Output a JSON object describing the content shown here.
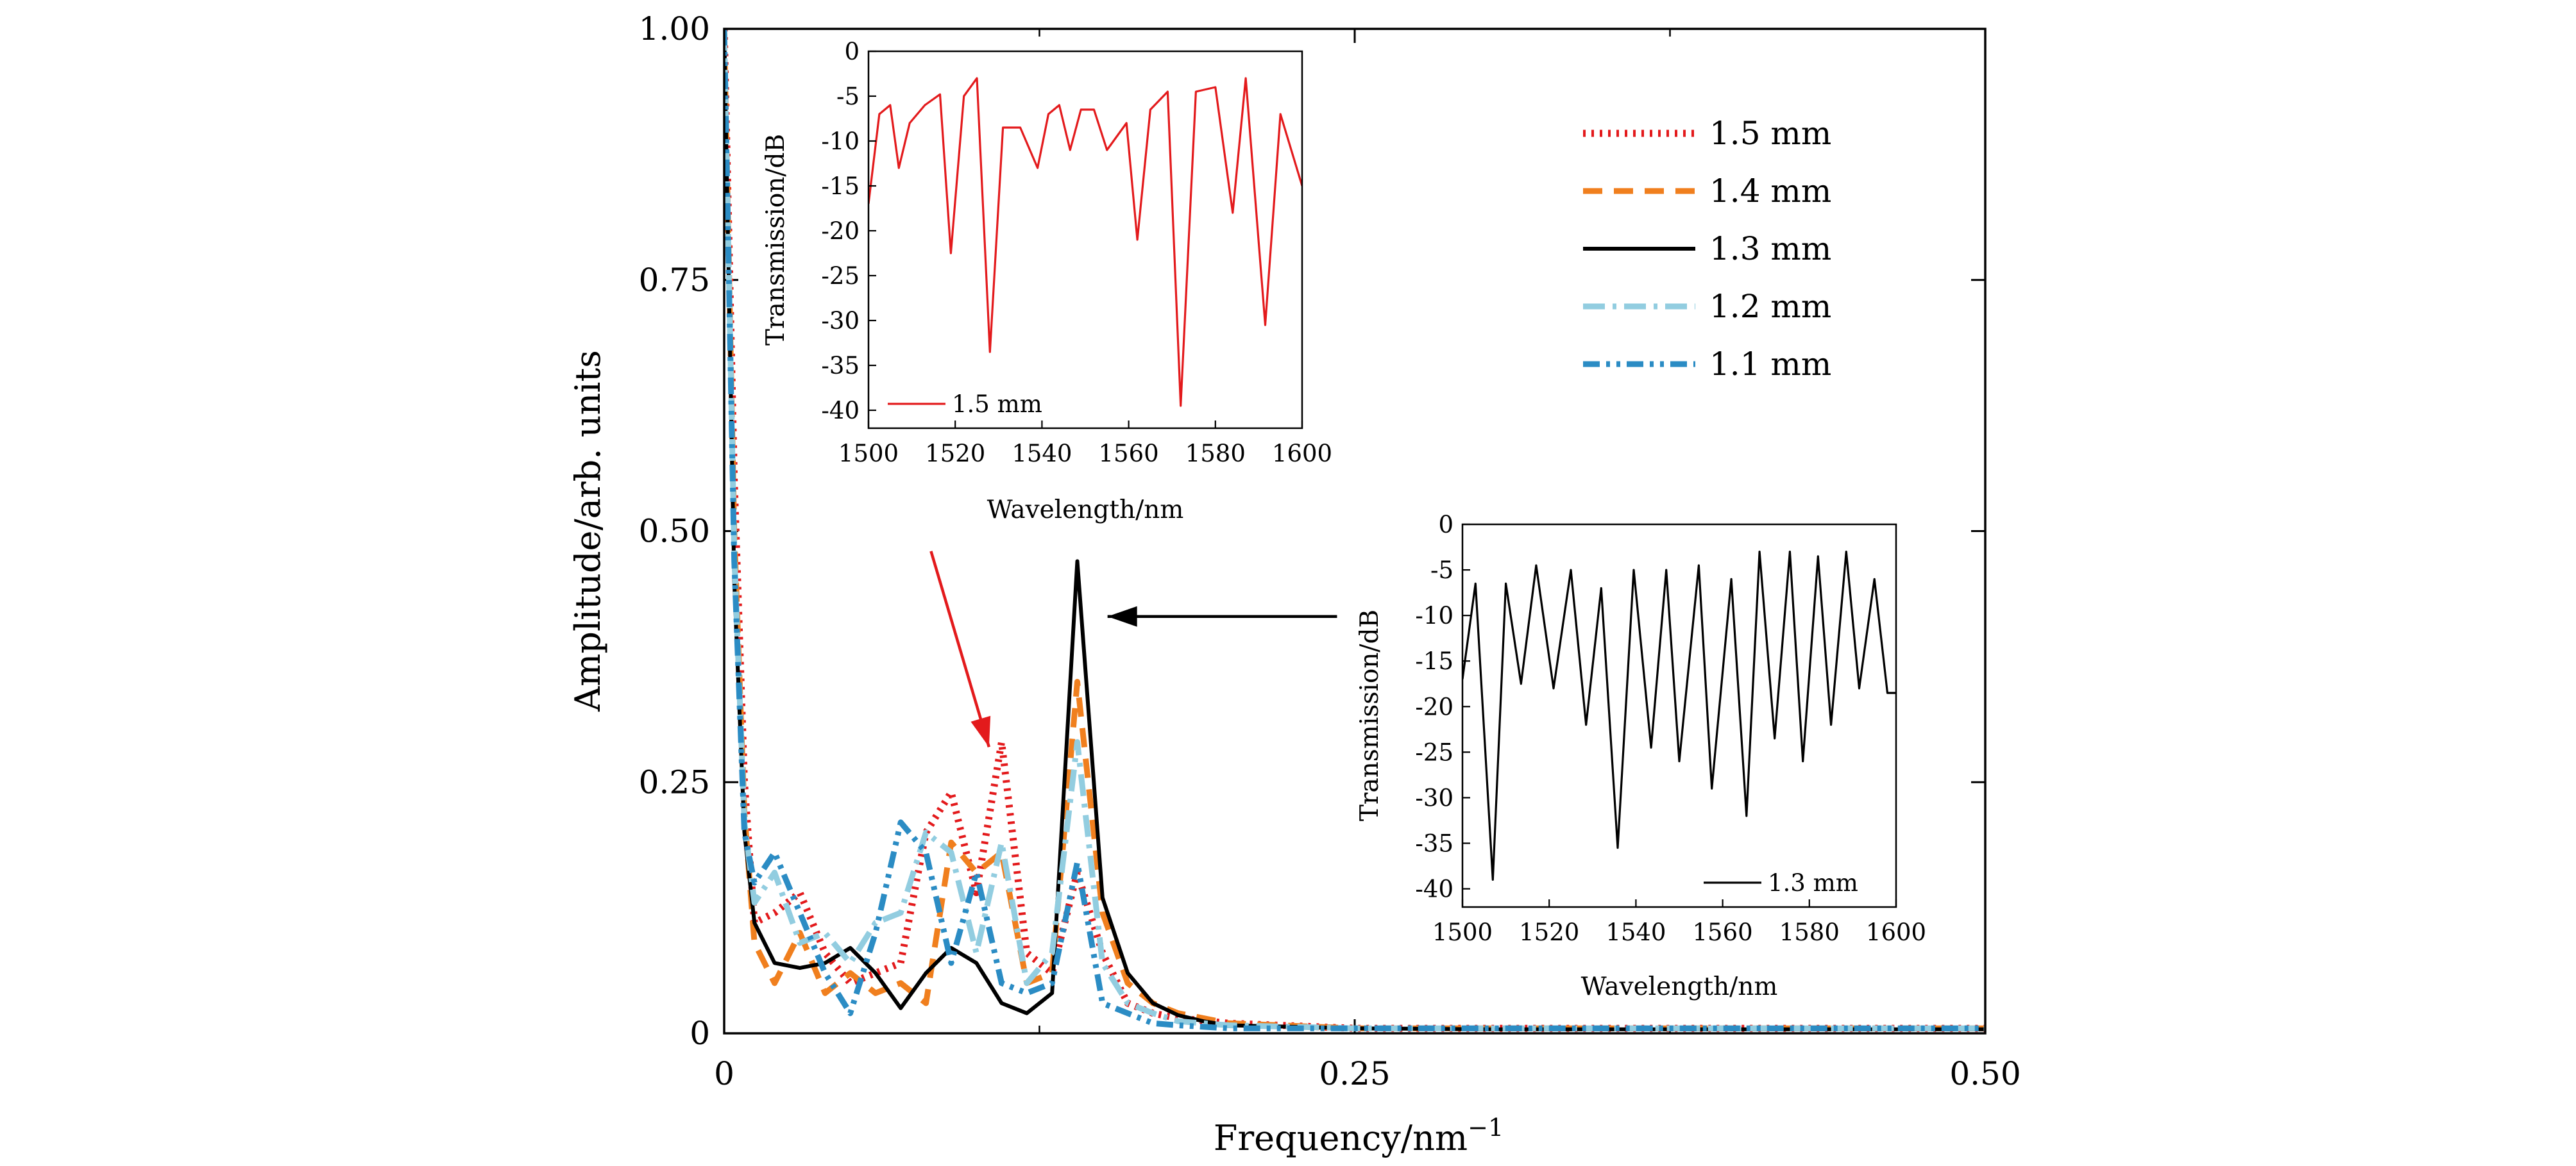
{
  "chart_data": [
    {
      "id": "main",
      "type": "line",
      "title": "",
      "xlabel": "Frequency/nm",
      "xlabel_sup": "−1",
      "ylabel": "Amplitude/arb. units",
      "xlim": [
        0,
        0.5
      ],
      "ylim": [
        0,
        1
      ],
      "xticks": [
        0,
        0.25,
        0.5
      ],
      "xtick_labels": [
        "0",
        "0.25",
        "0.50"
      ],
      "yticks": [
        0,
        0.25,
        0.5,
        0.75,
        1
      ],
      "ytick_labels": [
        "0",
        "0.25",
        "0.50",
        "0.75",
        "1.00"
      ],
      "legend_position": "top-right",
      "series": [
        {
          "name": "1.5 mm",
          "color": "#e31a1c",
          "style": "dotted",
          "x": [
            0,
            0.004,
            0.008,
            0.012,
            0.02,
            0.03,
            0.04,
            0.05,
            0.06,
            0.07,
            0.08,
            0.09,
            0.1,
            0.11,
            0.12,
            0.13,
            0.14,
            0.15,
            0.16,
            0.17,
            0.18,
            0.2,
            0.25,
            0.3,
            0.35,
            0.4,
            0.45,
            0.5
          ],
          "values": [
            1.0,
            0.55,
            0.25,
            0.11,
            0.12,
            0.14,
            0.08,
            0.05,
            0.06,
            0.07,
            0.2,
            0.24,
            0.14,
            0.29,
            0.08,
            0.06,
            0.16,
            0.08,
            0.03,
            0.02,
            0.015,
            0.01,
            0.005,
            0.005,
            0.005,
            0.005,
            0.005,
            0.005
          ]
        },
        {
          "name": "1.4 mm",
          "color": "#f07f1e",
          "style": "dashed",
          "x": [
            0,
            0.004,
            0.008,
            0.012,
            0.02,
            0.03,
            0.04,
            0.05,
            0.06,
            0.07,
            0.08,
            0.09,
            0.1,
            0.11,
            0.12,
            0.13,
            0.14,
            0.15,
            0.16,
            0.17,
            0.18,
            0.2,
            0.25,
            0.3,
            0.35,
            0.4,
            0.45,
            0.5
          ],
          "values": [
            1.0,
            0.5,
            0.22,
            0.09,
            0.05,
            0.1,
            0.04,
            0.06,
            0.04,
            0.05,
            0.03,
            0.19,
            0.16,
            0.18,
            0.05,
            0.06,
            0.35,
            0.12,
            0.05,
            0.03,
            0.02,
            0.01,
            0.005,
            0.005,
            0.005,
            0.005,
            0.005,
            0.005
          ]
        },
        {
          "name": "1.3 mm",
          "color": "#000000",
          "style": "solid",
          "x": [
            0,
            0.004,
            0.008,
            0.012,
            0.02,
            0.03,
            0.04,
            0.05,
            0.06,
            0.07,
            0.08,
            0.09,
            0.1,
            0.11,
            0.12,
            0.13,
            0.14,
            0.15,
            0.16,
            0.17,
            0.18,
            0.19,
            0.2,
            0.25,
            0.3,
            0.35,
            0.4,
            0.45,
            0.5
          ],
          "values": [
            1.0,
            0.45,
            0.2,
            0.11,
            0.07,
            0.065,
            0.07,
            0.085,
            0.06,
            0.025,
            0.06,
            0.085,
            0.07,
            0.03,
            0.02,
            0.04,
            0.47,
            0.135,
            0.06,
            0.03,
            0.018,
            0.012,
            0.008,
            0.005,
            0.004,
            0.004,
            0.004,
            0.004,
            0.004
          ]
        },
        {
          "name": "1.2 mm",
          "color": "#92cde0",
          "style": "dash-dot",
          "x": [
            0,
            0.004,
            0.008,
            0.012,
            0.02,
            0.03,
            0.04,
            0.05,
            0.06,
            0.07,
            0.08,
            0.09,
            0.1,
            0.11,
            0.12,
            0.13,
            0.14,
            0.15,
            0.16,
            0.17,
            0.18,
            0.2,
            0.25,
            0.3,
            0.35,
            0.4,
            0.45,
            0.5
          ],
          "values": [
            1.0,
            0.48,
            0.21,
            0.13,
            0.16,
            0.09,
            0.1,
            0.07,
            0.11,
            0.12,
            0.2,
            0.18,
            0.08,
            0.19,
            0.05,
            0.08,
            0.29,
            0.07,
            0.03,
            0.02,
            0.012,
            0.008,
            0.005,
            0.005,
            0.005,
            0.005,
            0.005,
            0.005
          ]
        },
        {
          "name": "1.1 mm",
          "color": "#2b8cc4",
          "style": "dash-dot-dot",
          "x": [
            0,
            0.004,
            0.008,
            0.012,
            0.02,
            0.03,
            0.04,
            0.05,
            0.06,
            0.07,
            0.08,
            0.09,
            0.1,
            0.11,
            0.12,
            0.13,
            0.14,
            0.15,
            0.16,
            0.17,
            0.18,
            0.2,
            0.25,
            0.3,
            0.35,
            0.4,
            0.45,
            0.5
          ],
          "values": [
            1.0,
            0.47,
            0.2,
            0.15,
            0.18,
            0.12,
            0.06,
            0.02,
            0.1,
            0.21,
            0.18,
            0.07,
            0.16,
            0.05,
            0.04,
            0.05,
            0.17,
            0.03,
            0.02,
            0.01,
            0.008,
            0.005,
            0.005,
            0.005,
            0.005,
            0.005,
            0.005,
            0.005
          ]
        }
      ],
      "annotations": [
        {
          "type": "arrow",
          "color": "#e31a1c",
          "from": [
            0.082,
            0.48
          ],
          "to": [
            0.105,
            0.285
          ]
        },
        {
          "type": "arrow",
          "color": "#000000",
          "from": [
            0.243,
            0.415
          ],
          "to": [
            0.152,
            0.415
          ]
        }
      ]
    },
    {
      "id": "inset-1-5mm",
      "type": "line",
      "xlabel": "Wavelength/nm",
      "ylabel": "Transmission/dB",
      "xlim": [
        1500,
        1600
      ],
      "ylim": [
        -42,
        0
      ],
      "xticks": [
        1500,
        1520,
        1540,
        1560,
        1580,
        1600
      ],
      "xtick_labels": [
        "1500",
        "1520",
        "1540",
        "1560",
        "1580",
        "1600"
      ],
      "yticks": [
        0,
        -5,
        -10,
        -15,
        -20,
        -25,
        -30,
        -35,
        -40
      ],
      "ytick_labels": [
        "0",
        "-5",
        "-10",
        "-15",
        "-20",
        "-25",
        "-30",
        "-35",
        "-40"
      ],
      "legend_position": "bottom-left",
      "series": [
        {
          "name": "1.5 mm",
          "color": "#e31a1c",
          "style": "solid",
          "x": [
            1500,
            1502.5,
            1505,
            1507,
            1509.5,
            1513,
            1516.5,
            1519,
            1522,
            1525,
            1528,
            1531,
            1535,
            1539,
            1541.5,
            1544,
            1546.5,
            1549,
            1552,
            1555,
            1559.5,
            1562,
            1565,
            1569,
            1572,
            1575.5,
            1580,
            1584,
            1587,
            1591.5,
            1595,
            1600
          ],
          "values": [
            -17,
            -7,
            -6,
            -13,
            -8,
            -6,
            -4.8,
            -22.5,
            -5,
            -3,
            -33.5,
            -8.5,
            -8.5,
            -13,
            -7,
            -6,
            -11,
            -6.5,
            -6.5,
            -11,
            -8,
            -21,
            -6.5,
            -4.5,
            -39.5,
            -4.5,
            -4,
            -18,
            -3,
            -30.5,
            -7,
            -15
          ]
        }
      ]
    },
    {
      "id": "inset-1-3mm",
      "type": "line",
      "xlabel": "Wavelength/nm",
      "ylabel": "Transmission/dB",
      "xlim": [
        1500,
        1600
      ],
      "ylim": [
        -42,
        0
      ],
      "xticks": [
        1500,
        1520,
        1540,
        1560,
        1580,
        1600
      ],
      "xtick_labels": [
        "1500",
        "1520",
        "1540",
        "1560",
        "1580",
        "1600"
      ],
      "yticks": [
        0,
        -5,
        -10,
        -15,
        -20,
        -25,
        -30,
        -35,
        -40
      ],
      "ytick_labels": [
        "0",
        "-5",
        "-10",
        "-15",
        "-20",
        "-25",
        "-30",
        "-35",
        "-40"
      ],
      "legend_position": "bottom-right",
      "series": [
        {
          "name": "1.3 mm",
          "color": "#000000",
          "style": "solid",
          "x": [
            1500,
            1503,
            1507,
            1510,
            1513.5,
            1517,
            1521,
            1525,
            1528.5,
            1532,
            1535.8,
            1539.5,
            1543.5,
            1547,
            1550,
            1554.5,
            1557.5,
            1562,
            1565.5,
            1568.5,
            1572,
            1575.5,
            1578.5,
            1582,
            1585,
            1588.5,
            1591.5,
            1595,
            1598,
            1600
          ],
          "values": [
            -17,
            -6.5,
            -39,
            -6.5,
            -17.5,
            -4.5,
            -18,
            -5,
            -22,
            -7,
            -35.5,
            -5,
            -24.5,
            -5,
            -26,
            -4.5,
            -29,
            -6,
            -32,
            -3,
            -23.5,
            -3,
            -26,
            -3.5,
            -22,
            -3,
            -18,
            -6,
            -18.5,
            -18.5
          ]
        }
      ]
    }
  ]
}
